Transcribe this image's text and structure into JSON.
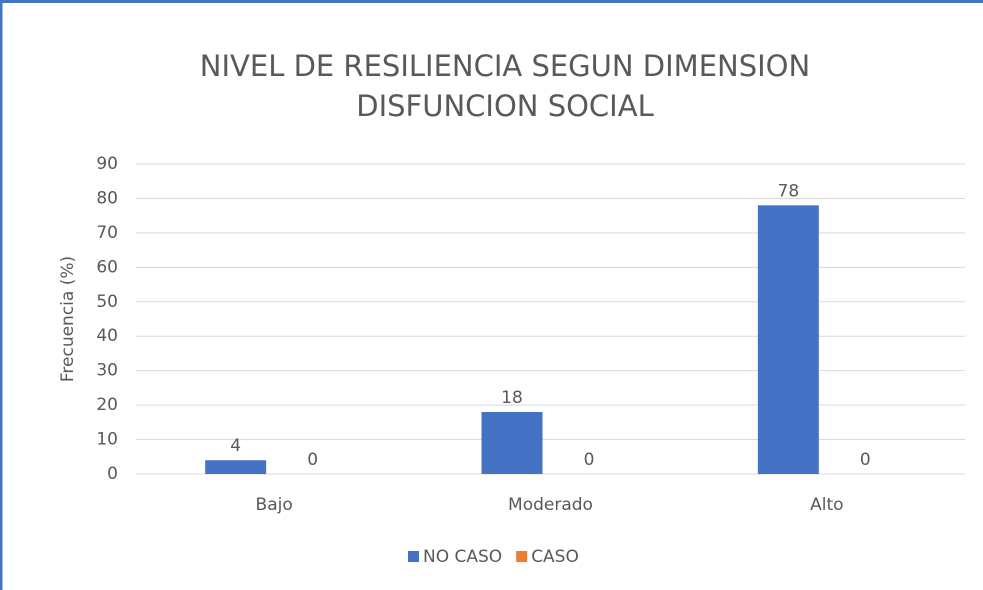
{
  "chart_data": {
    "type": "bar",
    "title": [
      "NIVEL DE RESILIENCIA SEGUN DIMENSION",
      "DISFUNCION SOCIAL"
    ],
    "y_label": "Frecuencia (%)",
    "categories": [
      "Bajo",
      "Moderado",
      "Alto"
    ],
    "series": [
      {
        "name": "NO CASO",
        "color": "#4472c4",
        "values": [
          4,
          18,
          78
        ]
      },
      {
        "name": "CASO",
        "color": "#ed7d31",
        "values": [
          0,
          0,
          0
        ]
      }
    ],
    "ylim": [
      0,
      90
    ],
    "yticks": [
      0,
      10,
      20,
      30,
      40,
      50,
      60,
      70,
      80,
      90
    ],
    "grid": true,
    "legend": "bottom"
  }
}
